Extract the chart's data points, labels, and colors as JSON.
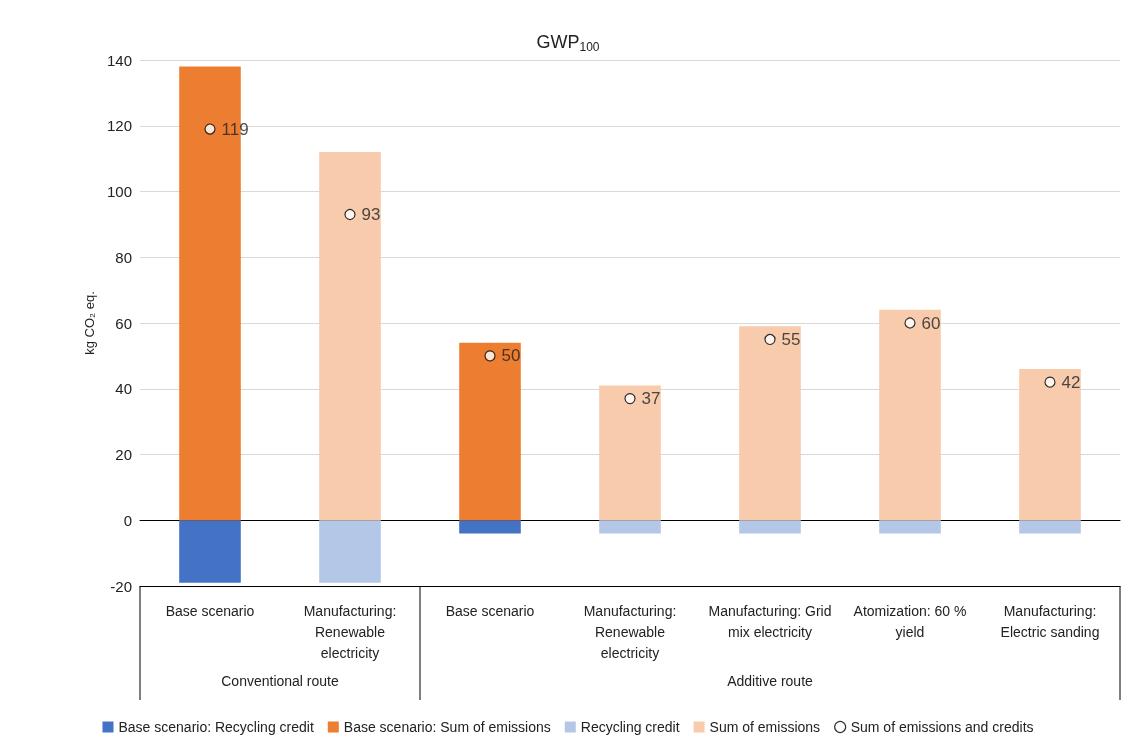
{
  "chart_data": {
    "type": "bar",
    "title": "GWP$_{100}$",
    "ylabel": "kg CO₂ eq.",
    "categories": [
      "Base scenario",
      "Manufacturing: Renewable electricity",
      "Base scenario",
      "Manufacturing: Renewable electricity",
      "Manufacturing: Grid mix electricity",
      "Atomization: 60 % yield",
      "Manufacturing: Electric sanding"
    ],
    "annotations": [
      "Conventional route",
      "Additive route"
    ],
    "stacked": true,
    "series": [
      {
        "name": "Base scenario: Recycling credit",
        "color": "#4472c4",
        "values": [
          -19,
          null,
          -4,
          null,
          null,
          null,
          null
        ]
      },
      {
        "name": "Base scenario: Sum of emissions",
        "color": "#ed7d31",
        "values": [
          138,
          null,
          54,
          null,
          null,
          null,
          null
        ]
      },
      {
        "name": "Recycling credit",
        "color": "#b4c7e7",
        "values": [
          null,
          -19,
          null,
          -4,
          -4,
          -4,
          -4
        ]
      },
      {
        "name": "Sum of emissions",
        "color": "#f8cbad",
        "values": [
          null,
          112,
          null,
          41,
          59,
          64,
          46
        ]
      },
      {
        "name": "Sum of emissions and credits",
        "type": "scatter",
        "color": "#ffffff",
        "values": [
          119,
          93,
          50,
          37,
          55,
          60,
          42
        ],
        "value_labels": [
          "119",
          "93",
          "50",
          "37",
          "55",
          "60",
          "42"
        ]
      }
    ],
    "ylim": [
      -20,
      140
    ],
    "yticks": [
      -20,
      0,
      20,
      40,
      60,
      80,
      100,
      120,
      140
    ],
    "grid": "y",
    "legend": "bottom",
    "marker": "circle"
  }
}
